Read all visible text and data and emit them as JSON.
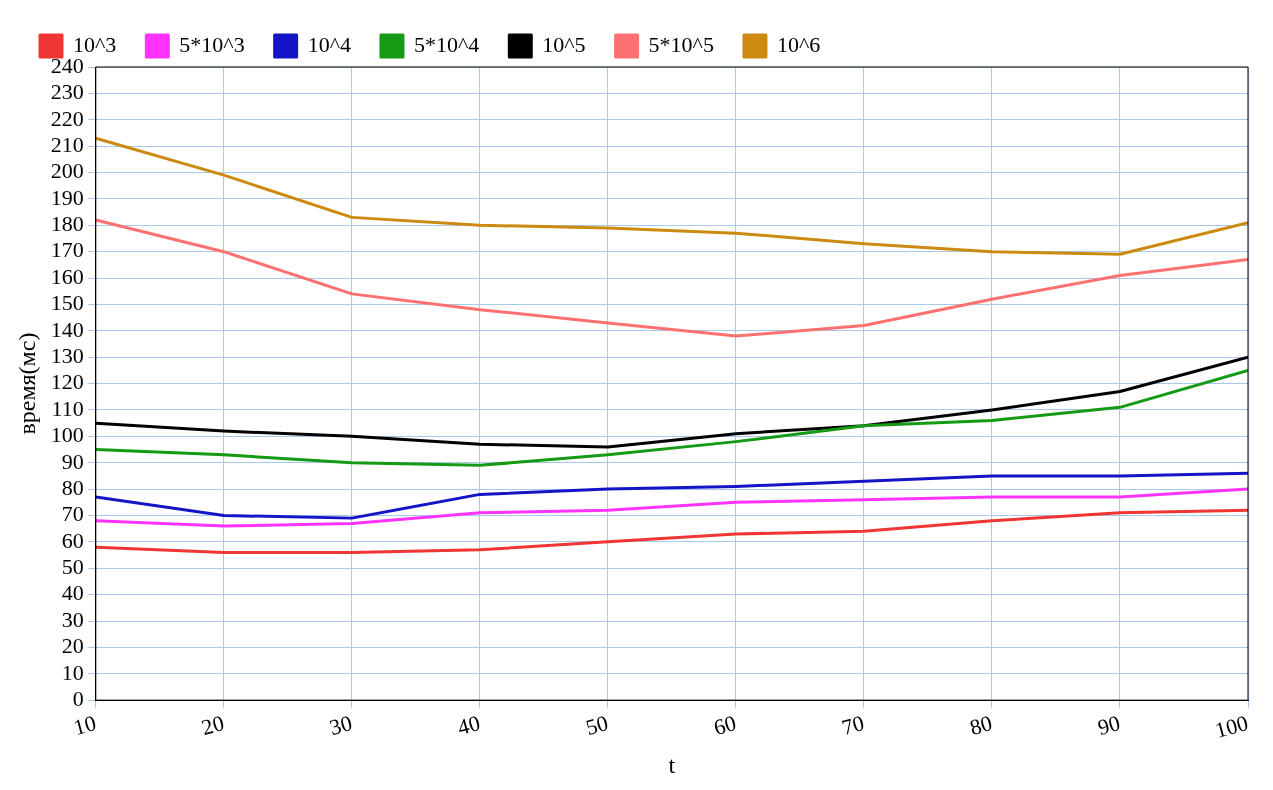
{
  "chart_data": {
    "type": "line",
    "xlabel": "t",
    "ylabel": "время(мс)",
    "x": [
      10,
      20,
      30,
      40,
      50,
      60,
      70,
      80,
      90,
      100
    ],
    "xlim": [
      10,
      100
    ],
    "xticks": [
      10,
      20,
      30,
      40,
      50,
      60,
      70,
      80,
      90,
      100
    ],
    "ylim": [
      0,
      240
    ],
    "yticks": [
      0,
      10,
      20,
      30,
      40,
      50,
      60,
      70,
      80,
      90,
      100,
      110,
      120,
      130,
      140,
      150,
      160,
      170,
      180,
      190,
      200,
      210,
      220,
      230,
      240
    ],
    "grid": true,
    "legend": "top",
    "marker": "none",
    "line_style": "solid",
    "series": [
      {
        "name": "10^3",
        "color": "#f03535",
        "values": [
          58,
          56,
          56,
          57,
          60,
          63,
          64,
          68,
          71,
          72
        ]
      },
      {
        "name": "5*10^3",
        "color": "#ff33ff",
        "values": [
          68,
          66,
          67,
          71,
          72,
          75,
          76,
          77,
          77,
          80
        ]
      },
      {
        "name": "10^4",
        "color": "#1515c8",
        "values": [
          77,
          70,
          69,
          78,
          80,
          81,
          83,
          85,
          85,
          86
        ]
      },
      {
        "name": "5*10^4",
        "color": "#159a15",
        "values": [
          95,
          93,
          90,
          89,
          93,
          98,
          104,
          106,
          111,
          125
        ]
      },
      {
        "name": "10^5",
        "color": "#000000",
        "values": [
          105,
          102,
          100,
          97,
          96,
          101,
          104,
          110,
          117,
          130
        ]
      },
      {
        "name": "5*10^5",
        "color": "#ff7070",
        "values": [
          182,
          170,
          154,
          148,
          143,
          138,
          142,
          152,
          161,
          167
        ]
      },
      {
        "name": "10^6",
        "color": "#cc8a10",
        "values": [
          213,
          199,
          183,
          180,
          179,
          177,
          173,
          170,
          169,
          181
        ]
      }
    ]
  }
}
